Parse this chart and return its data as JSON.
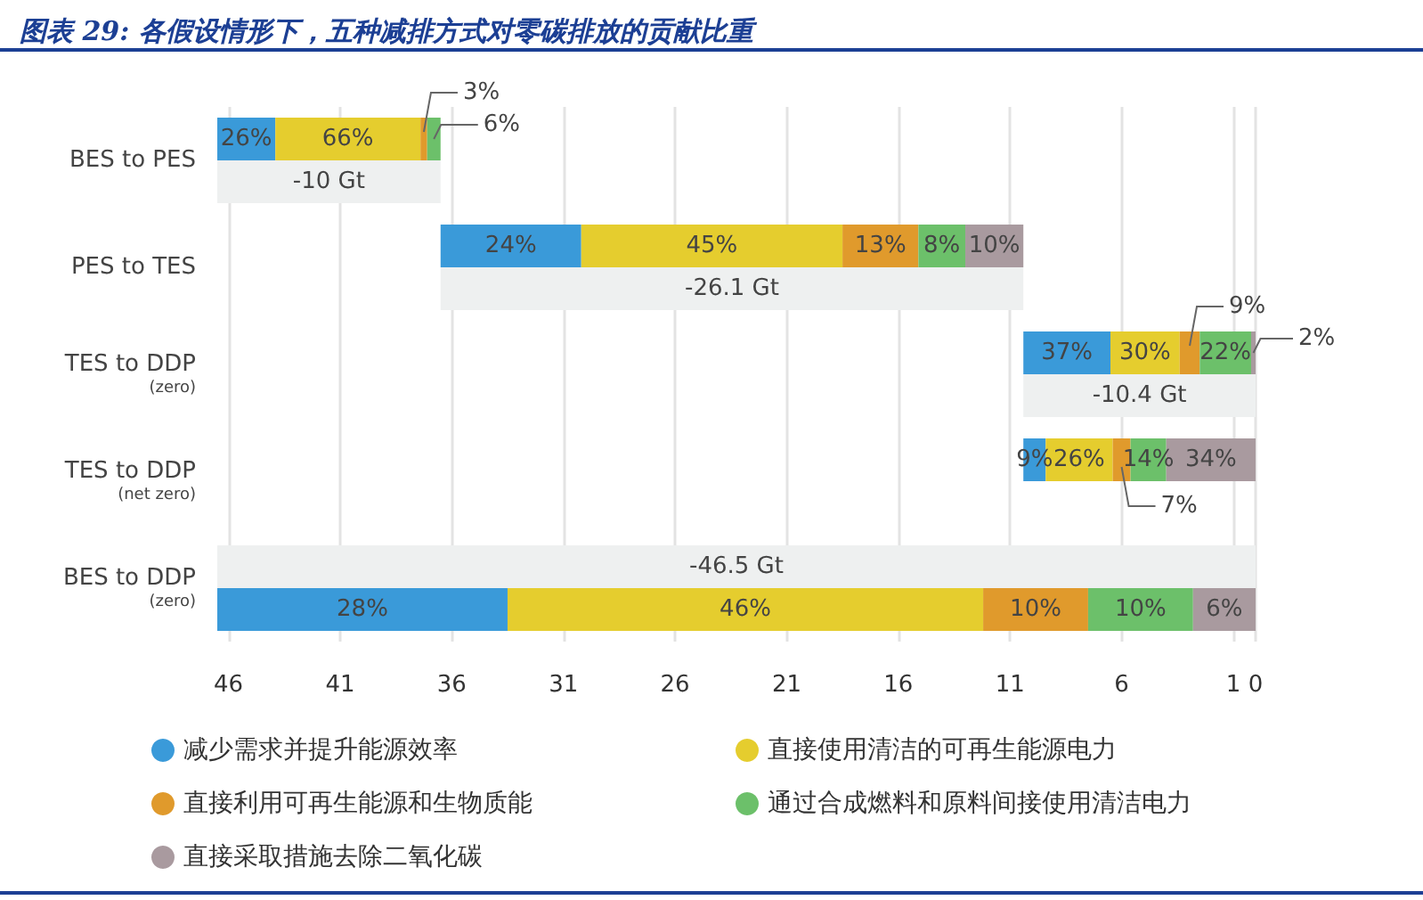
{
  "chart_data": {
    "type": "bar",
    "orientation": "horizontal",
    "title": "图表 29: 各假设情形下，五种减排方式对零碳排放的贡献比重",
    "categories": [
      "BES to PES",
      "PES to TES",
      "TES to DDP\n(zero)",
      "TES to DDP\n(net zero)",
      "BES to DDP\n(zero)"
    ],
    "series": [
      {
        "name": "减少需求并提升能源效率",
        "color": "#3a9ad9",
        "base": [
          46.5,
          36.5,
          10.4,
          10.4,
          46.5
        ],
        "values": [
          -2.6,
          -6.3,
          -3.9,
          -1.0,
          -13.0
        ]
      },
      {
        "name": "直接使用清洁的可再生能源电力",
        "color": "#e5cd2e",
        "base": [
          43.9,
          30.2,
          6.5,
          9.4,
          33.5
        ],
        "values": [
          -6.5,
          -11.7,
          -3.1,
          -3.0,
          -21.3
        ]
      },
      {
        "name": "直接利用可再生能源和生物质能",
        "color": "#e09a2c",
        "base": [
          37.4,
          18.5,
          3.4,
          6.4,
          12.2
        ],
        "values": [
          -0.3,
          -3.4,
          -0.9,
          -0.8,
          -4.7
        ]
      },
      {
        "name": "通过合成燃料和原料间接使用清洁电力",
        "color": "#6cc06a",
        "base": [
          37.1,
          15.1,
          2.5,
          5.6,
          7.5
        ],
        "values": [
          -0.6,
          -2.1,
          -2.3,
          -1.6,
          -4.7
        ]
      },
      {
        "name": "直接采取措施去除二氧化碳",
        "color": "#a99a9f",
        "base": [
          null,
          13.0,
          0.2,
          4.0,
          2.8
        ],
        "values": [
          null,
          -2.6,
          -0.2,
          -4.0,
          -2.8
        ]
      },
      {
        "color": "#eef0f0",
        "base": [
          46.5,
          36.5,
          10.4,
          null,
          46.5
        ],
        "values": [
          -10,
          -26.1,
          -10.4,
          null,
          -46.5
        ],
        "value_labels": [
          "-10 Gt",
          "-26.1 Gt",
          "-10.4 Gt",
          null,
          "-46.5 Gt"
        ]
      }
    ],
    "annotations": [
      {
        "text": "26%",
        "x": 45.2,
        "y": "BES to PES"
      },
      {
        "text": "66%",
        "x": 40.65,
        "y": "BES to PES"
      },
      {
        "text": "3%",
        "x": 37.25,
        "y": "BES to PES"
      },
      {
        "text": "6%",
        "x": 36.8,
        "y": "BES to PES"
      },
      {
        "text": "24%",
        "x": 33.35,
        "y": "PES to TES"
      },
      {
        "text": "45%",
        "x": 24.35,
        "y": "PES to TES"
      },
      {
        "text": "13%",
        "x": 16.8,
        "y": "PES to TES"
      },
      {
        "text": "8%",
        "x": 14.05,
        "y": "PES to TES"
      },
      {
        "text": "10%",
        "x": 11.7,
        "y": "PES to TES"
      },
      {
        "text": "37%",
        "x": 8.45,
        "y": "TES to DDP\n(zero)"
      },
      {
        "text": "30%",
        "x": 4.95,
        "y": "TES to DDP\n(zero)"
      },
      {
        "text": "9%",
        "x": 2.95,
        "y": "TES to DDP\n(zero)"
      },
      {
        "text": "22%",
        "x": 1.35,
        "y": "TES to DDP\n(zero)"
      },
      {
        "text": "2%",
        "x": 0.1,
        "y": "TES to DDP\n(zero)"
      },
      {
        "text": "9%",
        "x": 9.9,
        "y": "TES to DDP\n(net zero)"
      },
      {
        "text": "26%",
        "x": 7.9,
        "y": "TES to DDP\n(net zero)"
      },
      {
        "text": "7%",
        "x": 6.0,
        "y": "TES to DDP\n(net zero)"
      },
      {
        "text": "14%",
        "x": 4.8,
        "y": "TES to DDP\n(net zero)"
      },
      {
        "text": "34%",
        "x": 2.0,
        "y": "TES to DDP\n(net zero)"
      },
      {
        "text": "28%",
        "x": 40.0,
        "y": "BES to DDP\n(zero)"
      },
      {
        "text": "46%",
        "x": 22.85,
        "y": "BES to DDP\n(zero)"
      },
      {
        "text": "10%",
        "x": 9.85,
        "y": "BES to DDP\n(zero)"
      },
      {
        "text": "10%",
        "x": 5.15,
        "y": "BES to DDP\n(zero)"
      },
      {
        "text": "6%",
        "x": 1.4,
        "y": "BES to DDP\n(zero)"
      }
    ],
    "xlim": [
      46.5,
      0
    ],
    "xticks": [
      46,
      41,
      36,
      31,
      26,
      21,
      16,
      11,
      6,
      1,
      0
    ],
    "grid": "x",
    "legend": "bottom"
  }
}
